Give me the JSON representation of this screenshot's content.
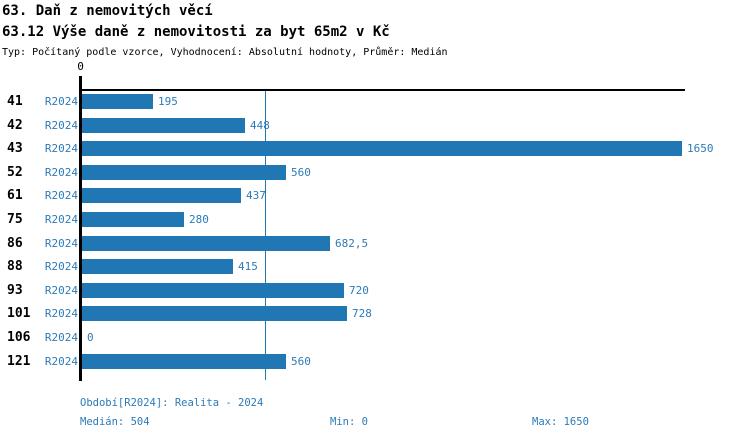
{
  "header": {
    "title": "63. Daň z nemovitých věcí",
    "subtitle": "63.12 Výše daně z nemovitosti za byt 65m2 v Kč",
    "meta": "Typ: Počítaný podle vzorce, Vyhodnocení: Absolutní hodnoty, Průměr: Medián"
  },
  "chart_data": {
    "type": "bar",
    "orientation": "horizontal",
    "title": "63.12 Výše daně z nemovitosti za byt 65m2 v Kč",
    "categories": [
      "41",
      "42",
      "43",
      "52",
      "61",
      "75",
      "86",
      "88",
      "93",
      "101",
      "106",
      "121"
    ],
    "series": [
      {
        "name": "R2024",
        "values": [
          195,
          448,
          1650,
          560,
          437,
          280,
          682.5,
          415,
          720,
          728,
          0,
          560
        ],
        "value_labels": [
          "195",
          "448",
          "1650",
          "560",
          "437",
          "280",
          "682,5",
          "415",
          "720",
          "728",
          "0",
          "560"
        ]
      }
    ],
    "xlim": [
      0,
      1650
    ],
    "x_axis_tick_label": "0",
    "median_value": 504,
    "min_value": 0,
    "max_value": 1650,
    "bar_color": "#2077b4",
    "label_color": "#2c7bb8",
    "grid": false,
    "legend_position": "none"
  },
  "footer": {
    "period": "Období[R2024]: Realita - 2024",
    "median": "Medián: 504",
    "min": "Min: 0",
    "max": "Max: 1650"
  }
}
